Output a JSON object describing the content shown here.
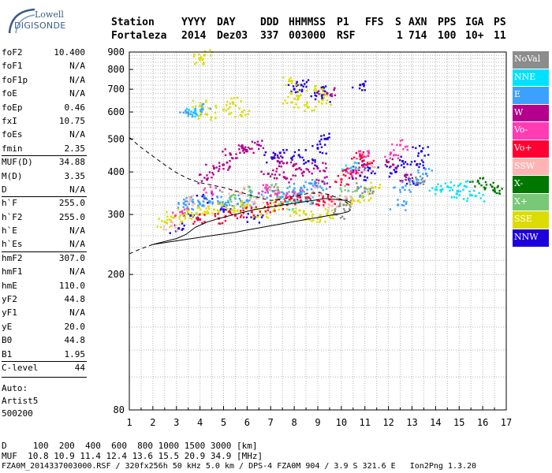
{
  "logo": {
    "top_text": "Lowell",
    "bottom_text": "DIGISONDE"
  },
  "header": {
    "labels": [
      "Station",
      "YYYY",
      "DAY",
      "DDD",
      "HHMMSS",
      "P1",
      "FFS",
      "S",
      "AXN",
      "PPS",
      "IGA",
      "PS"
    ],
    "values": [
      "Fortaleza",
      "2014",
      "Dez03",
      "337",
      "003000",
      "RSF",
      "1",
      "714",
      "100",
      "10+",
      "11"
    ]
  },
  "params": [
    {
      "key": "foF2",
      "value": "10.400"
    },
    {
      "key": "foF1",
      "value": "N/A"
    },
    {
      "key": "foF1p",
      "value": "N/A"
    },
    {
      "key": "foE",
      "value": "N/A"
    },
    {
      "key": "foEp",
      "value": "0.46"
    },
    {
      "key": "fxI",
      "value": "10.75"
    },
    {
      "key": "foEs",
      "value": "N/A"
    },
    {
      "key": "fmin",
      "value": "2.35"
    },
    {
      "key": "MUF(D)",
      "value": "34.88"
    },
    {
      "key": "M(D)",
      "value": "3.35"
    },
    {
      "key": "D",
      "value": "N/A"
    },
    {
      "key": "h`F",
      "value": "255.0"
    },
    {
      "key": "h`F2",
      "value": "255.0"
    },
    {
      "key": "h`E",
      "value": "N/A"
    },
    {
      "key": "h`Es",
      "value": "N/A"
    },
    {
      "key": "hmF2",
      "value": "307.0"
    },
    {
      "key": "hmF1",
      "value": "N/A"
    },
    {
      "key": "hmE",
      "value": "110.0"
    },
    {
      "key": "yF2",
      "value": "44.8"
    },
    {
      "key": "yF1",
      "value": "N/A"
    },
    {
      "key": "yE",
      "value": "20.0"
    },
    {
      "key": "B0",
      "value": "44.8"
    },
    {
      "key": "B1",
      "value": "1.95"
    },
    {
      "key": "C-level",
      "value": "44"
    }
  ],
  "auto": {
    "line1": "Auto:",
    "line2": "Artist5",
    "line3": "500200"
  },
  "legend": [
    {
      "label": "NoVal",
      "color": "#8c8c8c"
    },
    {
      "label": "NNE",
      "color": "#00e1ff"
    },
    {
      "label": "E",
      "color": "#3ca0ff"
    },
    {
      "label": "W",
      "color": "#b4008c"
    },
    {
      "label": "Vo-",
      "color": "#ff3cb4"
    },
    {
      "label": "Vo+",
      "color": "#ff0032"
    },
    {
      "label": "SSW",
      "color": "#ffb4b4"
    },
    {
      "label": "X-",
      "color": "#007800"
    },
    {
      "label": "X+",
      "color": "#78c878"
    },
    {
      "label": "SSE",
      "color": "#dcdc00"
    },
    {
      "label": "NNW",
      "color": "#1e00dc"
    }
  ],
  "footer": {
    "d_line": "D     100  200  400  600  800 1000 1500 3000 [km]",
    "muf_line": "MUF  10.8 10.9 11.4 12.4 13.6 15.5 20.9 34.9 [MHz]",
    "file_line": "FZA0M_2014337003000.RSF / 320fx256h 50 kHz 5.0 km / DPS-4 FZA0M 904 / 3.9 S 321.6 E   Ion2Png 1.3.20"
  },
  "chart_data": {
    "type": "scatter",
    "title": "",
    "xlabel": "",
    "ylabel": "",
    "xlim": [
      1,
      17
    ],
    "ylim": [
      80,
      900
    ],
    "xticks": [
      1,
      2,
      3,
      4,
      5,
      6,
      7,
      8,
      9,
      10,
      11,
      12,
      13,
      14,
      15,
      16,
      17
    ],
    "yticks": [
      80,
      200,
      300,
      400,
      500,
      600,
      700,
      800,
      900
    ],
    "grid": true,
    "y_scale": "log",
    "legend_position": "right",
    "series": [
      {
        "color_key": "NNW",
        "points": [
          [
            3.1,
            273
          ],
          [
            3.6,
            298
          ],
          [
            4.2,
            335
          ],
          [
            5.0,
            310
          ],
          [
            6.3,
            292
          ],
          [
            7.1,
            440
          ],
          [
            7.4,
            455
          ],
          [
            8.2,
            448
          ],
          [
            8.6,
            430
          ],
          [
            9.0,
            470
          ],
          [
            9.3,
            500
          ],
          [
            10.8,
            390
          ],
          [
            11.2,
            410
          ],
          [
            12.3,
            400
          ],
          [
            12.6,
            430
          ],
          [
            12.9,
            380
          ],
          [
            13.2,
            420
          ],
          [
            13.4,
            460
          ],
          [
            8.0,
            700
          ],
          [
            8.3,
            720
          ],
          [
            9.0,
            690
          ],
          [
            9.2,
            660
          ],
          [
            10.8,
            720
          ]
        ]
      },
      {
        "color_key": "W",
        "points": [
          [
            4.3,
            380
          ],
          [
            4.6,
            410
          ],
          [
            5.0,
            420
          ],
          [
            5.3,
            450
          ],
          [
            5.8,
            470
          ],
          [
            6.0,
            460
          ],
          [
            6.5,
            480
          ],
          [
            6.9,
            395
          ],
          [
            7.3,
            430
          ],
          [
            7.6,
            385
          ],
          [
            8.0,
            420
          ],
          [
            8.4,
            400
          ],
          [
            9.0,
            410
          ],
          [
            9.2,
            375
          ],
          [
            10.5,
            400
          ],
          [
            10.9,
            430
          ],
          [
            12.2,
            420
          ],
          [
            12.7,
            390
          ],
          [
            9.4,
            680
          ]
        ]
      },
      {
        "color_key": "E",
        "points": [
          [
            3.4,
            320
          ],
          [
            3.7,
            326
          ],
          [
            4.0,
            322
          ],
          [
            4.4,
            328
          ],
          [
            4.8,
            323
          ],
          [
            5.2,
            326
          ],
          [
            5.6,
            322
          ],
          [
            6.0,
            330
          ],
          [
            6.5,
            346
          ],
          [
            7.0,
            340
          ],
          [
            7.5,
            338
          ],
          [
            8.0,
            350
          ],
          [
            8.3,
            358
          ],
          [
            8.7,
            370
          ],
          [
            9.1,
            362
          ],
          [
            11.0,
            350
          ],
          [
            12.6,
            360
          ],
          [
            13.2,
            380
          ],
          [
            13.6,
            395
          ],
          [
            12.4,
            320
          ],
          [
            3.5,
            598
          ],
          [
            3.8,
            605
          ],
          [
            4.1,
            610
          ]
        ]
      },
      {
        "color_key": "NNE",
        "points": [
          [
            7.7,
            320
          ],
          [
            8.1,
            340
          ],
          [
            8.5,
            330
          ],
          [
            14.0,
            355
          ],
          [
            14.5,
            362
          ],
          [
            14.9,
            345
          ],
          [
            15.3,
            362
          ],
          [
            15.7,
            340
          ],
          [
            10.4,
            410
          ],
          [
            3.8,
            600
          ]
        ]
      },
      {
        "color_key": "SSE",
        "points": [
          [
            2.5,
            285
          ],
          [
            2.9,
            294
          ],
          [
            3.3,
            302
          ],
          [
            3.7,
            298
          ],
          [
            4.2,
            305
          ],
          [
            4.6,
            310
          ],
          [
            5.1,
            315
          ],
          [
            5.6,
            308
          ],
          [
            6.0,
            320
          ],
          [
            6.6,
            300
          ],
          [
            7.0,
            318
          ],
          [
            7.5,
            325
          ],
          [
            8.0,
            305
          ],
          [
            8.5,
            300
          ],
          [
            9.0,
            292
          ],
          [
            9.4,
            302
          ],
          [
            10.5,
            330
          ],
          [
            10.9,
            340
          ],
          [
            11.3,
            360
          ],
          [
            4.0,
            625
          ],
          [
            4.3,
            590
          ],
          [
            5.0,
            610
          ],
          [
            5.4,
            640
          ],
          [
            5.8,
            600
          ],
          [
            7.9,
            640
          ],
          [
            8.2,
            668
          ],
          [
            8.6,
            620
          ],
          [
            8.9,
            700
          ],
          [
            9.2,
            650
          ],
          [
            4.0,
            855
          ],
          [
            4.2,
            880
          ],
          [
            7.9,
            740
          ]
        ]
      },
      {
        "color_key": "Vo+",
        "points": [
          [
            4.0,
            290
          ],
          [
            4.8,
            292
          ],
          [
            5.5,
            298
          ],
          [
            6.2,
            305
          ],
          [
            6.9,
            315
          ],
          [
            7.5,
            322
          ],
          [
            8.0,
            330
          ],
          [
            8.5,
            336
          ],
          [
            9.0,
            330
          ],
          [
            9.5,
            332
          ],
          [
            10.0,
            380
          ],
          [
            10.4,
            395
          ],
          [
            10.8,
            445
          ],
          [
            11.1,
            420
          ]
        ]
      },
      {
        "color_key": "Vo-",
        "points": [
          [
            3.2,
            305
          ],
          [
            4.5,
            350
          ],
          [
            6.8,
            360
          ],
          [
            7.2,
            345
          ],
          [
            8.0,
            345
          ],
          [
            10.6,
            405
          ],
          [
            10.9,
            450
          ],
          [
            12.1,
            455
          ],
          [
            12.5,
            480
          ]
        ]
      },
      {
        "color_key": "SSW",
        "points": [
          [
            2.8,
            278
          ],
          [
            3.6,
            330
          ],
          [
            5.5,
            350
          ],
          [
            6.4,
            335
          ],
          [
            8.8,
            350
          ],
          [
            9.6,
            318
          ],
          [
            10.2,
            330
          ],
          [
            11.3,
            415
          ]
        ]
      },
      {
        "color_key": "X+",
        "points": [
          [
            5.3,
            338
          ],
          [
            6.2,
            350
          ],
          [
            7.3,
            360
          ],
          [
            10.3,
            352
          ]
        ]
      },
      {
        "color_key": "X-",
        "points": [
          [
            16.4,
            362
          ],
          [
            16.5,
            352
          ],
          [
            15.8,
            375
          ]
        ]
      },
      {
        "color_key": "NoVal",
        "points": [
          [
            9.8,
            300
          ],
          [
            10.1,
            320
          ],
          [
            11.0,
            358
          ],
          [
            13.2,
            372
          ]
        ]
      }
    ],
    "traces": [
      {
        "name": "profile",
        "style": "dashed",
        "points": [
          [
            1.0,
            505
          ],
          [
            1.5,
            472
          ],
          [
            2.0,
            445
          ],
          [
            2.5,
            420
          ],
          [
            3.0,
            398
          ],
          [
            3.5,
            382
          ],
          [
            4.0,
            372
          ],
          [
            4.5,
            366
          ],
          [
            5.0,
            360
          ],
          [
            5.5,
            352
          ],
          [
            6.0,
            344
          ],
          [
            6.5,
            336
          ],
          [
            7.0,
            330
          ],
          [
            7.5,
            332
          ],
          [
            8.0,
            340
          ],
          [
            8.5,
            345
          ],
          [
            9.0,
            348
          ],
          [
            9.5,
            343
          ],
          [
            10.0,
            332
          ],
          [
            10.4,
            320
          ]
        ]
      },
      {
        "name": "profile",
        "style": "dashed",
        "points": [
          [
            1.0,
            230
          ],
          [
            1.5,
            238
          ],
          [
            2.0,
            245
          ]
        ]
      },
      {
        "name": "h_trace",
        "style": "solid",
        "points": [
          [
            2.0,
            245
          ],
          [
            2.5,
            248
          ],
          [
            3.0,
            251
          ],
          [
            3.5,
            254
          ],
          [
            4.0,
            257
          ],
          [
            4.5,
            260
          ],
          [
            5.0,
            263
          ],
          [
            5.5,
            266
          ],
          [
            6.0,
            270
          ],
          [
            6.5,
            274
          ],
          [
            7.0,
            278
          ],
          [
            7.5,
            282
          ],
          [
            8.0,
            286
          ],
          [
            8.5,
            290
          ],
          [
            9.0,
            294
          ],
          [
            9.5,
            298
          ],
          [
            10.0,
            302
          ],
          [
            10.3,
            306
          ],
          [
            10.4,
            310
          ]
        ]
      },
      {
        "name": "trace",
        "style": "solid",
        "points": [
          [
            2.0,
            245
          ],
          [
            2.5,
            250
          ],
          [
            3.0,
            255
          ],
          [
            3.4,
            262
          ],
          [
            3.8,
            275
          ],
          [
            4.3,
            285
          ],
          [
            4.8,
            292
          ],
          [
            5.3,
            298
          ],
          [
            5.8,
            304
          ],
          [
            6.3,
            310
          ],
          [
            6.8,
            314
          ],
          [
            7.3,
            318
          ],
          [
            7.8,
            322
          ],
          [
            8.3,
            326
          ],
          [
            8.8,
            330
          ],
          [
            9.3,
            334
          ],
          [
            9.8,
            332
          ],
          [
            10.2,
            330
          ],
          [
            10.4,
            325
          ]
        ]
      }
    ]
  }
}
